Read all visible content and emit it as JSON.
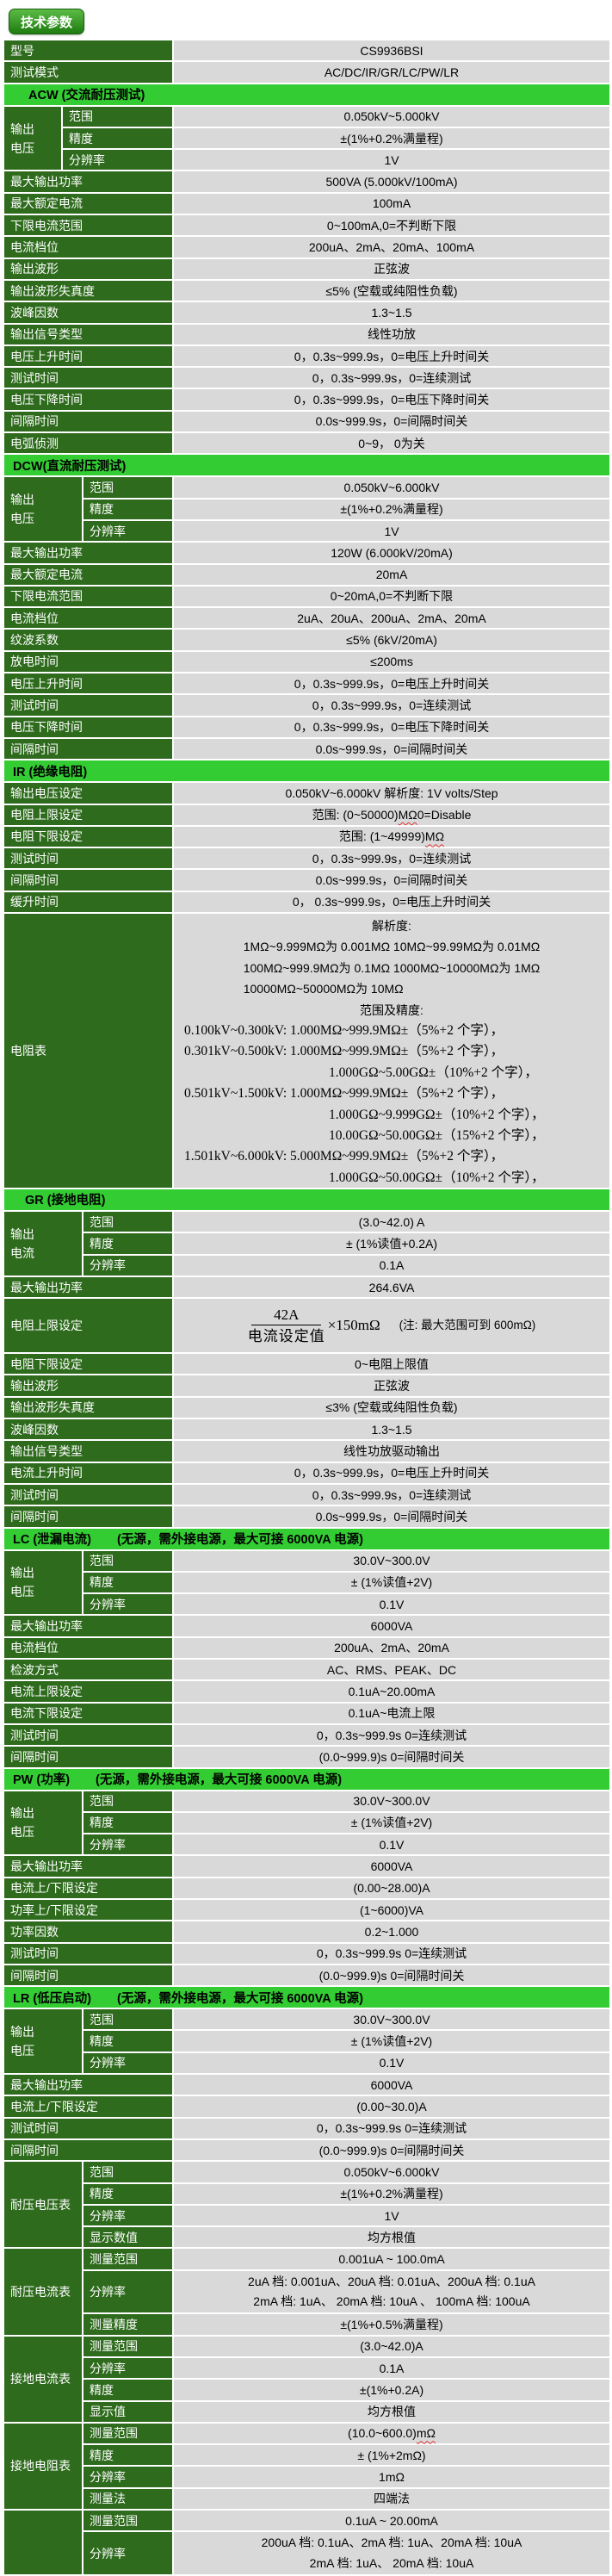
{
  "badge": "技术参数",
  "colors": {
    "label_bg": "#2e6b1d",
    "section_bg": "#33cc33",
    "cell_bg": "#d9d9d9",
    "badge_top": "#5cbb45",
    "badge_bottom": "#1e7c11",
    "squiggle": "#e03131"
  },
  "top_rows": [
    {
      "label": "型号",
      "value": "CS9936BSI"
    },
    {
      "label": "测试模式",
      "value": "AC/DC/IR/GR/LC/PW/LR"
    }
  ],
  "sections": [
    {
      "key": "acw",
      "title": "ACW (交流耐压测试)",
      "note": "",
      "rows": [
        {
          "group": "输出\n电压",
          "rows": [
            {
              "label": "范围",
              "value": "0.050kV~5.000kV"
            },
            {
              "label": "精度",
              "value": "±(1%+0.2%满量程)"
            },
            {
              "label": "分辨率",
              "value": "1V"
            }
          ]
        },
        {
          "label": "最大输出功率",
          "value": "500VA (5.000kV/100mA)"
        },
        {
          "label": "最大额定电流",
          "value": "100mA"
        },
        {
          "label": "下限电流范围",
          "value": "0~100mA,0=不判断下限"
        },
        {
          "label": "电流档位",
          "value": "200uA、2mA、20mA、100mA"
        },
        {
          "label": "输出波形",
          "value": "正弦波"
        },
        {
          "label": "输出波形失真度",
          "value": "≤5% (空载或纯阻性负载)"
        },
        {
          "label": "波峰因数",
          "value": "1.3~1.5"
        },
        {
          "label": "输出信号类型",
          "value": "线性功放"
        },
        {
          "label": "电压上升时间",
          "value": "0，0.3s~999.9s，0=电压上升时间关"
        },
        {
          "label": "测试时间",
          "value": "0，0.3s~999.9s，0=连续测试"
        },
        {
          "label": "电压下降时间",
          "value": "0，0.3s~999.9s，0=电压下降时间关"
        },
        {
          "label": "间隔时间",
          "value": "0.0s~999.9s，0=间隔时间关"
        },
        {
          "label": "电弧侦测",
          "value": "0~9， 0为关"
        }
      ]
    },
    {
      "key": "dcw",
      "title": "DCW(直流耐压测试)",
      "note": "",
      "rows": [
        {
          "group": "输出\n电压",
          "rows": [
            {
              "label": "范围",
              "value": "0.050kV~6.000kV"
            },
            {
              "label": "精度",
              "value": "±(1%+0.2%满量程)"
            },
            {
              "label": "分辨率",
              "value": "1V"
            }
          ]
        },
        {
          "label": "最大输出功率",
          "value": "120W (6.000kV/20mA)"
        },
        {
          "label": "最大额定电流",
          "value": "20mA"
        },
        {
          "label": "下限电流范围",
          "value": "0~20mA,0=不判断下限"
        },
        {
          "label": "电流档位",
          "value": "2uA、20uA、200uA、2mA、20mA"
        },
        {
          "label": "纹波系数",
          "value": "≤5% (6kV/20mA)"
        },
        {
          "label": "放电时间",
          "value": "≤200ms"
        },
        {
          "label": "电压上升时间",
          "value": "0，0.3s~999.9s，0=电压上升时间关"
        },
        {
          "label": "测试时间",
          "value": "0，0.3s~999.9s，0=连续测试"
        },
        {
          "label": "电压下降时间",
          "value": "0，0.3s~999.9s，0=电压下降时间关"
        },
        {
          "label": "间隔时间",
          "value": "0.0s~999.9s，0=间隔时间关"
        }
      ]
    },
    {
      "key": "ir",
      "title": "IR (绝缘电阻)",
      "note": "",
      "rows": [
        {
          "label": "输出电压设定",
          "value": "0.050kV~6.000kV   解析度: 1V volts/Step"
        },
        {
          "label": "电阻上限设定",
          "pre": "范围: (0~50000)",
          "sq": "MΩ",
          "post": "   0=Disable"
        },
        {
          "label": "电阻下限设定",
          "pre": "范围: (1~49999)",
          "sq": "MΩ",
          "post": ""
        },
        {
          "label": "测试时间",
          "value": "0，0.3s~999.9s，0=连续测试"
        },
        {
          "label": "间隔时间",
          "value": "0.0s~999.9s，0=间隔时间关"
        },
        {
          "label": "缓升时间",
          "value": "0，  0.3s~999.9s，0=电压上升时间关"
        },
        {
          "label": "电阻表",
          "restable": {
            "res_heading": "解析度:",
            "res_lines": [
              "1MΩ~9.999MΩ为 0.001MΩ      10MΩ~99.99MΩ为 0.01MΩ",
              "100MΩ~999.9MΩ为 0.1MΩ      1000MΩ~10000MΩ为 1MΩ",
              "10000MΩ~50000MΩ为 10MΩ"
            ],
            "acc_heading": "范围及精度:",
            "acc_lines": [
              {
                "prefix": "0.100kV~0.300kV: ",
                "body": "1.000MΩ~999.9MΩ±（5%+2 个字），"
              },
              {
                "prefix": "0.301kV~0.500kV: ",
                "body": "1.000MΩ~999.9MΩ±（5%+2 个字），"
              },
              {
                "prefix": "",
                "body": "1.000GΩ~5.00GΩ±（10%+2 个字），"
              },
              {
                "prefix": "0.501kV~1.500kV: ",
                "body": "1.000MΩ~999.9MΩ±（5%+2 个字），"
              },
              {
                "prefix": "",
                "body": "1.000GΩ~9.999GΩ±（10%+2 个字），"
              },
              {
                "prefix": "",
                "body": "10.00GΩ~50.00GΩ±（15%+2 个字），"
              },
              {
                "prefix": "1.501kV~6.000kV: ",
                "body": "5.000MΩ~999.9MΩ±（5%+2 个字），"
              },
              {
                "prefix": "",
                "body": "1.000GΩ~50.00GΩ±（10%+2 个字），"
              }
            ]
          }
        }
      ]
    },
    {
      "key": "gr",
      "title": "GR (接地电阻)",
      "note": "",
      "rows": [
        {
          "group": "输出\n电流",
          "rows": [
            {
              "label": "范围",
              "value": "(3.0~42.0) A"
            },
            {
              "label": "精度",
              "value": "± (1%读值+0.2A)"
            },
            {
              "label": "分辨率",
              "value": "0.1A"
            }
          ]
        },
        {
          "label": "最大输出功率",
          "value": "264.6VA"
        },
        {
          "label": "电阻上限设定",
          "formula": {
            "numerator": "42A",
            "denominator": "电流设定值",
            "suffix": "×150mΩ",
            "note": "(注: 最大范围可到 600mΩ)"
          }
        },
        {
          "label": "电阻下限设定",
          "value": "0~电阻上限值"
        },
        {
          "label": "输出波形",
          "value": "正弦波"
        },
        {
          "label": "输出波形失真度",
          "value": "≤3% (空载或纯阻性负载)"
        },
        {
          "label": "波峰因数",
          "value": "1.3~1.5"
        },
        {
          "label": "输出信号类型",
          "value": "线性功放驱动输出"
        },
        {
          "label": "电流上升时间",
          "value": "0，0.3s~999.9s，0=电压上升时间关"
        },
        {
          "label": "测试时间",
          "value": "0，0.3s~999.9s，0=连续测试"
        },
        {
          "label": "间隔时间",
          "value": "0.0s~999.9s，0=间隔时间关"
        }
      ]
    },
    {
      "key": "lc",
      "title": "LC (泄漏电流)",
      "note": "(无源，需外接电源，最大可接 6000VA 电源)",
      "rows": [
        {
          "group": "输出\n电压",
          "rows": [
            {
              "label": "范围",
              "value": "30.0V~300.0V"
            },
            {
              "label": "精度",
              "value": "± (1%读值+2V)"
            },
            {
              "label": "分辨率",
              "value": "0.1V"
            }
          ]
        },
        {
          "label": "最大输出功率",
          "value": "6000VA"
        },
        {
          "label": "电流档位",
          "value": "200uA、2mA、20mA"
        },
        {
          "label": "检波方式",
          "value": "AC、RMS、PEAK、DC"
        },
        {
          "label": "电流上限设定",
          "value": "0.1uA~20.00mA"
        },
        {
          "label": "电流下限设定",
          "value": "0.1uA~电流上限"
        },
        {
          "label": "测试时间",
          "value": "0，0.3s~999.9s  0=连续测试"
        },
        {
          "label": "间隔时间",
          "value": "(0.0~999.9)s  0=间隔时间关"
        }
      ]
    },
    {
      "key": "pw",
      "title": "PW (功率)",
      "note": "(无源，需外接电源，最大可接 6000VA 电源)",
      "rows": [
        {
          "group": "输出\n电压",
          "rows": [
            {
              "label": "范围",
              "value": "30.0V~300.0V"
            },
            {
              "label": "精度",
              "value": "± (1%读值+2V)"
            },
            {
              "label": "分辨率",
              "value": "0.1V"
            }
          ]
        },
        {
          "label": "最大输出功率",
          "value": "6000VA"
        },
        {
          "label": "电流上/下限设定",
          "value": "(0.00~28.00)A"
        },
        {
          "label": "功率上/下限设定",
          "value": "(1~6000)VA"
        },
        {
          "label": "功率因数",
          "value": "0.2~1.000"
        },
        {
          "label": "测试时间",
          "value": "0，0.3s~999.9s  0=连续测试"
        },
        {
          "label": "间隔时间",
          "value": "(0.0~999.9)s  0=间隔时间关"
        }
      ]
    },
    {
      "key": "lr",
      "title": "LR (低压启动)",
      "note": "(无源，需外接电源，最大可接 6000VA 电源)",
      "rows": [
        {
          "group": "输出\n电压",
          "rows": [
            {
              "label": "范围",
              "value": "30.0V~300.0V"
            },
            {
              "label": "精度",
              "value": "± (1%读值+2V)"
            },
            {
              "label": "分辨率",
              "value": "0.1V"
            }
          ]
        },
        {
          "label": "最大输出功率",
          "value": "6000VA"
        },
        {
          "label": "电流上/下限设定",
          "value": "(0.00~30.0)A"
        },
        {
          "label": "测试时间",
          "value": "0，0.3s~999.9s  0=连续测试"
        },
        {
          "label": "间隔时间",
          "value": "(0.0~999.9)s  0=间隔时间关"
        }
      ]
    },
    {
      "key": "meters",
      "title": "",
      "note": "",
      "rows": [
        {
          "group": "耐压电压表",
          "rows": [
            {
              "label": "范围",
              "value": "0.050kV~6.000kV"
            },
            {
              "label": "精度",
              "value": "±(1%+0.2%满量程)"
            },
            {
              "label": "分辨率",
              "value": "1V"
            },
            {
              "label": "显示数值",
              "value": "均方根值"
            }
          ]
        },
        {
          "group": "耐压电流表",
          "rows": [
            {
              "label": "测量范围",
              "value": "0.001uA ~ 100.0mA"
            },
            {
              "label": "分辨率",
              "lines": [
                "2uA 档: 0.001uA、20uA 档: 0.01uA、200uA 档: 0.1uA",
                "2mA 档: 1uA、  20mA 档: 10uA 、 100mA 档: 100uA"
              ]
            },
            {
              "label": "测量精度",
              "value": "±(1%+0.5%满量程)"
            }
          ]
        },
        {
          "group": "接地电流表",
          "rows": [
            {
              "label": "测量范围",
              "value": "(3.0~42.0)A"
            },
            {
              "label": "分辨率",
              "value": "0.1A"
            },
            {
              "label": "精度",
              "value": "±(1%+0.2A)"
            },
            {
              "label": "显示值",
              "value": "均方根值"
            }
          ]
        },
        {
          "group": "接地电阻表",
          "rows": [
            {
              "label": "测量范围",
              "pre": "(10.0~600.0) ",
              "sq": "mΩ",
              "post": ""
            },
            {
              "label": "精度",
              "value": "± (1%+2mΩ)"
            },
            {
              "label": "分辨率",
              "value": "1mΩ"
            },
            {
              "label": "测量法",
              "value": "四端法"
            }
          ]
        },
        {
          "group": "",
          "rows": [
            {
              "label": "测量范围",
              "value": "0.1uA ~ 20.00mA"
            },
            {
              "label": "分辨率",
              "lines": [
                "200uA 档: 0.1uA、2mA 档: 1uA、20mA 档: 10uA",
                "2mA 档: 1uA、    20mA 档: 10uA"
              ]
            }
          ]
        }
      ]
    }
  ]
}
